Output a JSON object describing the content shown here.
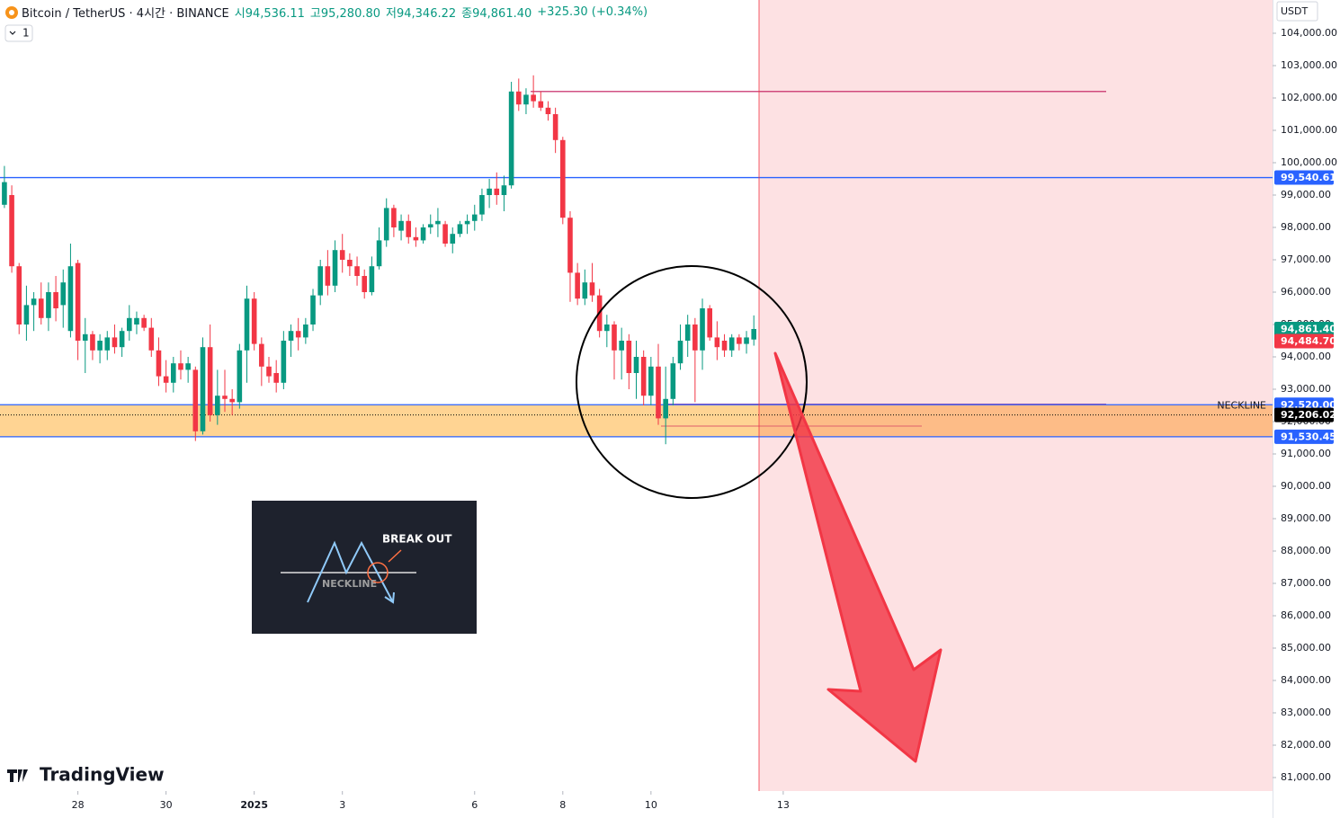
{
  "chart_data": {
    "type": "candlestick",
    "title": "Bitcoin / TetherUS · 4시간 · BINANCE",
    "ohlc_labels": [
      "시94,536.11",
      "고95,280.80",
      "저94,346.22",
      "종94,861.40",
      "+325.30 (+0.34%)"
    ],
    "currency": "USDT",
    "interval_menu": "1",
    "open": [
      98700,
      99000,
      96800,
      95000,
      95600,
      95800,
      95200,
      96000,
      95600,
      94800,
      96900,
      94500,
      94700,
      94200,
      94200,
      94600,
      94300,
      94800,
      95000,
      95200,
      94900,
      94200,
      93400,
      93200,
      93800,
      93600,
      93600,
      91700,
      94300,
      92200,
      92800,
      92700,
      92600,
      94200,
      95800,
      94400,
      93700,
      93500,
      93200,
      94500,
      94800,
      94600,
      95000,
      95900,
      96800,
      96200,
      97300,
      97000,
      96800,
      96500,
      96000,
      96800,
      97600,
      98600,
      97900,
      98200,
      97700,
      97600,
      98000,
      98100,
      98100,
      97500,
      97800,
      98100,
      98200,
      98400,
      99000,
      99200,
      99000,
      99300,
      102200,
      101800,
      102100,
      101900,
      101700,
      101500,
      100700,
      98300,
      96600,
      95800,
      96300,
      95900,
      94800,
      95000,
      94200,
      94500,
      93500,
      94000,
      92800,
      93700,
      92100,
      92700,
      93800,
      94500,
      95000,
      94200,
      95500,
      94600,
      94500,
      94200,
      94600,
      94400,
      94536.11
    ],
    "high": [
      99900,
      99300,
      96900,
      96200,
      96000,
      96300,
      96300,
      96500,
      96700,
      97500,
      97000,
      95200,
      94800,
      94700,
      94800,
      95000,
      94900,
      95600,
      95400,
      95300,
      95200,
      94600,
      93900,
      94000,
      94200,
      94000,
      93700,
      94600,
      95000,
      93600,
      93600,
      93000,
      94400,
      96200,
      96000,
      94600,
      94000,
      93900,
      94800,
      95000,
      95200,
      95200,
      96100,
      97000,
      97300,
      97600,
      97800,
      97200,
      97100,
      96700,
      97100,
      98000,
      98900,
      98700,
      98400,
      98400,
      98000,
      98100,
      98400,
      98600,
      98200,
      98000,
      98200,
      98400,
      98700,
      99200,
      99500,
      99700,
      99600,
      102500,
      102600,
      102300,
      102700,
      102200,
      101900,
      101700,
      100800,
      98500,
      96900,
      96700,
      96900,
      96100,
      95300,
      95100,
      94900,
      94700,
      94500,
      94200,
      94000,
      94400,
      93700,
      94000,
      95000,
      95300,
      95200,
      95800,
      95600,
      95100,
      94700,
      94700,
      94700,
      94800,
      95280.8
    ],
    "low": [
      98600,
      96600,
      94700,
      94500,
      94800,
      95000,
      94800,
      95100,
      94900,
      94600,
      93900,
      93500,
      93900,
      93800,
      93900,
      94100,
      94000,
      94500,
      94700,
      94800,
      94000,
      93100,
      92900,
      92900,
      93300,
      93200,
      91400,
      91600,
      92000,
      91900,
      92300,
      92200,
      92400,
      93200,
      94200,
      93100,
      93200,
      92900,
      93000,
      94000,
      94200,
      94400,
      94800,
      95600,
      95900,
      96000,
      96600,
      96500,
      96200,
      95800,
      95900,
      96700,
      97400,
      97700,
      97600,
      97500,
      97400,
      97500,
      97800,
      97700,
      97400,
      97200,
      97700,
      97800,
      97900,
      98200,
      98600,
      98700,
      98500,
      99200,
      101600,
      101500,
      101700,
      101600,
      101300,
      100300,
      98100,
      95700,
      95600,
      95600,
      95700,
      94600,
      94300,
      93300,
      93300,
      93000,
      92700,
      92500,
      92500,
      91900,
      91300,
      92500,
      93600,
      94000,
      92600,
      93600,
      94500,
      93900,
      94000,
      94000,
      94200,
      94100,
      94346.22
    ],
    "close": [
      99400,
      96800,
      95000,
      95600,
      95800,
      95200,
      96000,
      95500,
      96300,
      96800,
      94500,
      94700,
      94200,
      94500,
      94600,
      94300,
      94800,
      95200,
      95200,
      94900,
      94200,
      93400,
      93200,
      93800,
      93600,
      93800,
      91700,
      94300,
      92200,
      92800,
      92700,
      92600,
      94200,
      95800,
      94400,
      93700,
      93400,
      93200,
      94500,
      94800,
      94600,
      95000,
      95900,
      96800,
      96200,
      97300,
      97000,
      96800,
      96500,
      96000,
      96800,
      97600,
      98600,
      98000,
      98200,
      97700,
      97600,
      98000,
      98100,
      98200,
      97500,
      97800,
      98100,
      98200,
      98400,
      99000,
      99200,
      99000,
      99300,
      102200,
      101800,
      102100,
      101900,
      101700,
      101500,
      100700,
      98300,
      96600,
      95800,
      96300,
      95900,
      94800,
      95000,
      94200,
      94500,
      93500,
      94000,
      92800,
      93700,
      92100,
      92700,
      93800,
      94500,
      95000,
      94200,
      95500,
      94600,
      94300,
      94200,
      94600,
      94400,
      94600,
      94861.4
    ],
    "up_color": "#089981",
    "down_color": "#f23645",
    "xlim": [
      -0.6,
      172.6
    ],
    "xticks": [
      {
        "value": 10,
        "label": "28"
      },
      {
        "value": 22,
        "label": "30"
      },
      {
        "value": 34,
        "label": "2025"
      },
      {
        "value": 46,
        "label": "3"
      },
      {
        "value": 64,
        "label": "6"
      },
      {
        "value": 76,
        "label": "8"
      },
      {
        "value": 88,
        "label": "10"
      },
      {
        "value": 106,
        "label": "13"
      }
    ],
    "ylim": [
      80583,
      105028
    ],
    "yticks": [
      {
        "value": 81000,
        "label": "81,000.00"
      },
      {
        "value": 82000,
        "label": "82,000.00"
      },
      {
        "value": 83000,
        "label": "83,000.00"
      },
      {
        "value": 84000,
        "label": "84,000.00"
      },
      {
        "value": 85000,
        "label": "85,000.00"
      },
      {
        "value": 86000,
        "label": "86,000.00"
      },
      {
        "value": 87000,
        "label": "87,000.00"
      },
      {
        "value": 88000,
        "label": "88,000.00"
      },
      {
        "value": 89000,
        "label": "89,000.00"
      },
      {
        "value": 90000,
        "label": "90,000.00"
      },
      {
        "value": 91000,
        "label": "91,000.00"
      },
      {
        "value": 92000,
        "label": "92,000.00"
      },
      {
        "value": 93000,
        "label": "93,000.00"
      },
      {
        "value": 94000,
        "label": "94,000.00"
      },
      {
        "value": 95000,
        "label": "95,000.00"
      },
      {
        "value": 96000,
        "label": "96,000.00"
      },
      {
        "value": 97000,
        "label": "97,000.00"
      },
      {
        "value": 98000,
        "label": "98,000.00"
      },
      {
        "value": 99000,
        "label": "99,000.00"
      },
      {
        "value": 100000,
        "label": "100,000.00"
      },
      {
        "value": 101000,
        "label": "101,000.00"
      },
      {
        "value": 102000,
        "label": "102,000.00"
      },
      {
        "value": 103000,
        "label": "103,000.00"
      },
      {
        "value": 104000,
        "label": "104,000.00"
      }
    ],
    "grid": false,
    "levels": [
      {
        "value": 99540.61,
        "label": "99,540.61",
        "color": "#2962ff",
        "line": "solid"
      },
      {
        "value": 94861.4,
        "label": "94,861.40",
        "color": "#089981"
      },
      {
        "value": 94484.7,
        "label": "94,484.70",
        "color": "#f23645"
      },
      {
        "value": 92520.0,
        "label": "92,520.00",
        "color": "#2962ff",
        "line": "solid",
        "zone_edge": true
      },
      {
        "value": 92206.02,
        "label": "92,206.02",
        "color": "#000000",
        "line": "dotted"
      },
      {
        "value": 91530.45,
        "label": "91,530.45",
        "color": "#2962ff",
        "line": "solid",
        "zone_edge": true
      }
    ],
    "zone_color": "#ffcc80",
    "neckline_label": "NECKLINE",
    "trend_lines": [
      {
        "value": 102200,
        "color": "#c2185b"
      },
      {
        "value": 92540,
        "color": "#7e57c2"
      },
      {
        "value": 91860,
        "color": "#e57373"
      }
    ]
  },
  "inset": {
    "break_out": "BREAK OUT",
    "neckline": "NECKLINE"
  },
  "watermark": "TradingView"
}
